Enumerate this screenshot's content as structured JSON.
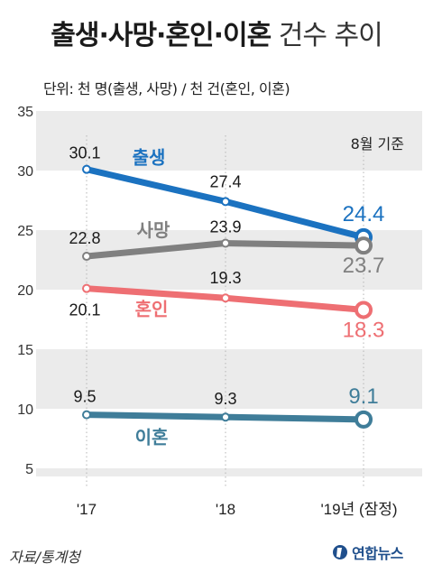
{
  "title_bold": "출생·사망·혼인·이혼",
  "title_light": " 건수 추이",
  "unit": "단위: 천 명(출생, 사망) / 천 건(혼인, 이혼)",
  "basis": "8월 기준",
  "source": "자료/통계청",
  "logo": "연합뉴스",
  "chart_data": {
    "type": "line",
    "categories": [
      "'17",
      "'18",
      "'19년 (잠정)"
    ],
    "ylim": [
      0,
      35
    ],
    "yticks": [
      "5",
      "10",
      "15",
      "20",
      "25",
      "30",
      "35"
    ],
    "grid": "alternating horizontal bands",
    "series": [
      {
        "name": "출생",
        "values": [
          30.1,
          27.4,
          24.4
        ],
        "labels": [
          "30.1",
          "27.4",
          "24.4"
        ],
        "color": "#1b72c0"
      },
      {
        "name": "사망",
        "values": [
          22.8,
          23.9,
          23.7
        ],
        "labels": [
          "22.8",
          "23.9",
          "23.7"
        ],
        "color": "#808080"
      },
      {
        "name": "혼인",
        "values": [
          20.1,
          19.3,
          18.3
        ],
        "labels": [
          "20.1",
          "19.3",
          "18.3"
        ],
        "color": "#ee6f73"
      },
      {
        "name": "이혼",
        "values": [
          9.5,
          9.3,
          9.1
        ],
        "labels": [
          "9.5",
          "9.3",
          "9.1"
        ],
        "color": "#3f7d99"
      }
    ]
  }
}
